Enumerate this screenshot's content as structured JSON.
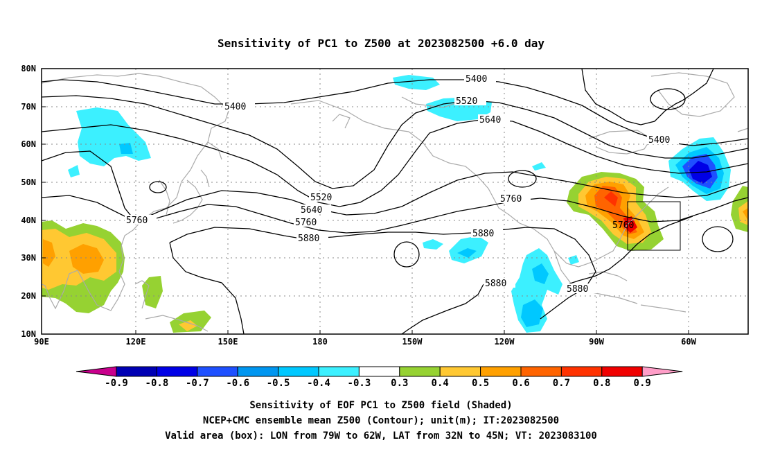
{
  "title": "Sensitivity of PC1 to Z500 at 2023082500 +6.0 day",
  "lat_labels": [
    "80N",
    "70N",
    "60N",
    "50N",
    "40N",
    "30N",
    "20N",
    "10N"
  ],
  "lon_labels": [
    "90E",
    "120E",
    "150E",
    "180",
    "150W",
    "120W",
    "90W",
    "60W"
  ],
  "contour_labels": [
    {
      "text": "5400"
    },
    {
      "text": "5400"
    },
    {
      "text": "5400"
    },
    {
      "text": "5520"
    },
    {
      "text": "5520"
    },
    {
      "text": "5640"
    },
    {
      "text": "5640"
    },
    {
      "text": "5760"
    },
    {
      "text": "5760"
    },
    {
      "text": "5760"
    },
    {
      "text": "5760"
    },
    {
      "text": "5880"
    },
    {
      "text": "5880"
    },
    {
      "text": "5880"
    },
    {
      "text": "5880"
    }
  ],
  "colorbar": {
    "ticks": [
      "-0.9",
      "-0.8",
      "-0.7",
      "-0.6",
      "-0.5",
      "-0.4",
      "-0.3",
      "0.3",
      "0.4",
      "0.5",
      "0.6",
      "0.7",
      "0.8",
      "0.9"
    ],
    "colors": [
      "#c8008c",
      "#0000b4",
      "#0000e6",
      "#1e50ff",
      "#0096f0",
      "#00c8ff",
      "#3cf0ff",
      "#ffffff",
      "#96d232",
      "#ffc832",
      "#ffa000",
      "#ff6400",
      "#ff3200",
      "#f00000",
      "#ff9ec8"
    ]
  },
  "footer": {
    "line1": "Sensitivity of EOF PC1 to Z500 field (Shaded)",
    "line2": "NCEP+CMC ensemble mean Z500 (Contour); unit(m); IT:2023082500",
    "line3": "Valid area (box): LON from 79W to 62W, LAT from 32N to 45N; VT: 2023083100"
  }
}
